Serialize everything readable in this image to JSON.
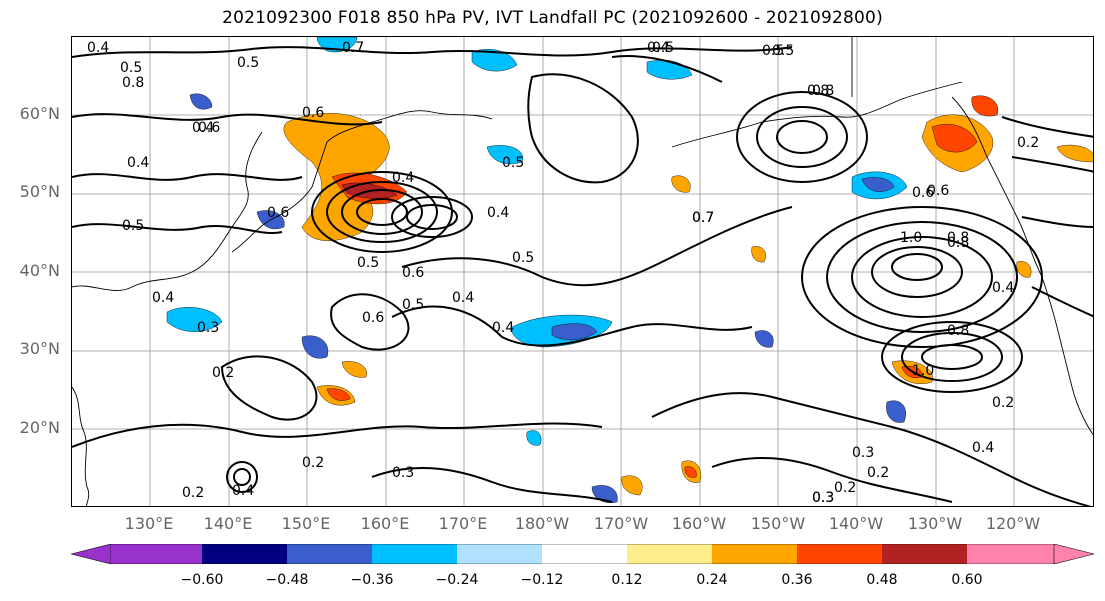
{
  "title": "2021092300 F018 850 hPa PV, IVT Landfall PC (2021092600 - 2021092800)",
  "lat_labels": [
    "60°N",
    "50°N",
    "40°N",
    "30°N",
    "20°N"
  ],
  "lon_labels": [
    "130°E",
    "140°E",
    "150°E",
    "160°E",
    "170°E",
    "180°W",
    "170°W",
    "160°W",
    "150°W",
    "140°W",
    "130°W",
    "120°W"
  ],
  "colorbar": {
    "tick_labels": [
      "−0.60",
      "−0.48",
      "−0.36",
      "−0.24",
      "−0.12",
      "0.12",
      "0.24",
      "0.36",
      "0.48",
      "0.60"
    ],
    "colors": [
      "#9932CC",
      "#000080",
      "#3A5FCD",
      "#00BFFF",
      "#B0E2FF",
      "#FFFFFF",
      "#FFEC8B",
      "#FFA500",
      "#FF4500",
      "#B22222",
      "#FF82AB"
    ]
  },
  "contour_labels": [
    "0.4",
    "0.5",
    "0.7",
    "0.5",
    "0.4",
    "0.5",
    "0.5",
    "0.6",
    "0.8",
    "0.8",
    "0.6",
    "0.4",
    "0.5",
    "0.2",
    "0.4",
    "0.5",
    "0.6",
    "0.4",
    "0.5",
    "0.4",
    "0.3",
    "0.6",
    "0.5",
    "0.4",
    "0.4",
    "0.6",
    "0.5",
    "0.7",
    "0.8",
    "0.6",
    "1.0",
    "0.8",
    "1.0",
    "0.8",
    "0.2",
    "0.4",
    "0.2",
    "0.3",
    "0.2",
    "0.3",
    "0.2",
    "0.2",
    "0.3",
    "0.4",
    "0.4",
    "0.2",
    "0.6",
    "0.8",
    "0.7",
    "0.5",
    "0.4",
    "0.3"
  ]
}
